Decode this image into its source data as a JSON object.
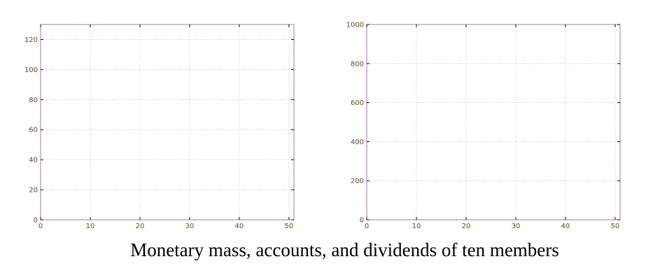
{
  "caption": "Monetary mass, accounts, and dividends of ten members",
  "colors": {
    "frame": "#a07aa8",
    "grid": "#c8c8c8",
    "tick_text": "#5a4a2a"
  },
  "chart_data": [
    {
      "type": "line",
      "title": "",
      "xlabel": "",
      "ylabel": "",
      "xlim": [
        0,
        51
      ],
      "ylim": [
        0,
        130
      ],
      "xticks": [
        0,
        10,
        20,
        30,
        40,
        50
      ],
      "yticks": [
        0,
        20,
        40,
        60,
        80,
        100,
        120
      ],
      "grid": true,
      "series": []
    },
    {
      "type": "line",
      "title": "",
      "xlabel": "",
      "ylabel": "",
      "xlim": [
        0,
        51
      ],
      "ylim": [
        0,
        1000
      ],
      "xticks": [
        0,
        10,
        20,
        30,
        40,
        50
      ],
      "yticks": [
        0,
        200,
        400,
        600,
        800,
        1000
      ],
      "grid": true,
      "series": []
    }
  ]
}
